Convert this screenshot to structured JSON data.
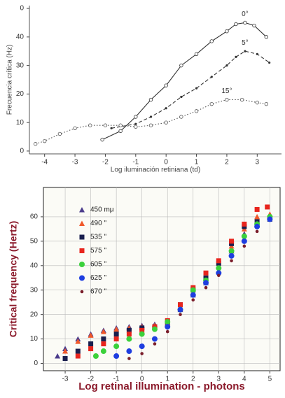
{
  "chart_data": [
    {
      "type": "line",
      "xlabel": "Log iluminación retiniana (td)",
      "ylabel": "Frecuencia crítica (Hz)",
      "xlim": [
        -4.5,
        3.8
      ],
      "ylim": [
        -1,
        51
      ],
      "xticks": [
        -4,
        -3,
        -2,
        -1,
        0,
        1,
        2,
        3
      ],
      "yticks": [
        0,
        10,
        20,
        30,
        40,
        {
          "value": 50,
          "label": "0"
        }
      ],
      "grid": false,
      "series": [
        {
          "name": "0°",
          "color": "#333333",
          "line_style": "solid",
          "marker": "circle-open",
          "x": [
            -2.1,
            -1.5,
            -1,
            -0.5,
            0,
            0.5,
            1,
            1.5,
            2,
            2.3,
            2.6,
            2.9,
            3.3
          ],
          "values": [
            4,
            7,
            12,
            18,
            23,
            30,
            34,
            38.5,
            42,
            44.5,
            45,
            44,
            40
          ]
        },
        {
          "name": "5°",
          "color": "#333333",
          "line_style": "dashed",
          "marker": "dot",
          "x": [
            -1.8,
            -1,
            -0.5,
            0,
            0.5,
            1,
            1.5,
            2,
            2.3,
            2.6,
            3,
            3.4
          ],
          "values": [
            8,
            9.5,
            12,
            15,
            19,
            22,
            26,
            30,
            33,
            35,
            34,
            31
          ]
        },
        {
          "name": "15°",
          "color": "#555555",
          "line_style": "dotted",
          "marker": "circle-open",
          "x": [
            -4.3,
            -4,
            -3.5,
            -3,
            -2.5,
            -2,
            -1.5,
            -1,
            -0.5,
            0,
            0.5,
            1,
            1.5,
            2,
            2.5,
            3,
            3.3
          ],
          "values": [
            2.5,
            3.5,
            6,
            8,
            9,
            9,
            9,
            8.5,
            9,
            10,
            12,
            14,
            16.5,
            18,
            18,
            17,
            16.5
          ]
        }
      ]
    },
    {
      "type": "scatter",
      "xlabel": "Log retinal illumination - photons",
      "ylabel": "Critical frequency (Hertz)",
      "xlim": [
        -3.85,
        5.4
      ],
      "ylim": [
        -3,
        72
      ],
      "xticks": [
        -3,
        -2,
        -1,
        0,
        1,
        2,
        3,
        4,
        5
      ],
      "yticks": [
        0,
        10,
        20,
        30,
        40,
        50,
        60
      ],
      "grid": true,
      "legend": "upper left",
      "series": [
        {
          "name": "450 mμ",
          "color": "#4b3c8c",
          "marker": "triangle",
          "x": [
            -3.3,
            -3,
            -2.5,
            -2,
            -1.5,
            -1,
            -0.5,
            0,
            0.5,
            1,
            1.5,
            2,
            2.5,
            3,
            3.5,
            4,
            4.5,
            5
          ],
          "values": [
            3,
            6,
            10,
            12,
            13.5,
            14.5,
            15,
            15.5,
            16,
            17,
            22,
            28,
            33,
            38,
            46,
            53,
            58,
            61
          ]
        },
        {
          "name": "490 \"",
          "color": "#f0582a",
          "marker": "triangle",
          "x": [
            -3,
            -2.5,
            -2,
            -1.5,
            -1,
            -0.5,
            0,
            0.5,
            1,
            1.5,
            2,
            2.5,
            3,
            3.5,
            4,
            4.5,
            5
          ],
          "values": [
            5,
            9,
            11.5,
            13,
            14,
            14.5,
            15,
            15.5,
            16.5,
            23,
            29,
            34,
            40,
            48,
            55,
            60,
            61
          ]
        },
        {
          "name": "535 \"",
          "color": "#1a1f4e",
          "marker": "square",
          "x": [
            -3,
            -2.5,
            -2,
            -1.5,
            -1,
            -0.5,
            0,
            0.5,
            1,
            1.5,
            2,
            2.5,
            3,
            3.5,
            4,
            4.5,
            5
          ],
          "values": [
            2,
            5,
            8,
            10,
            12,
            13.5,
            14.5,
            15,
            17,
            24,
            30,
            35,
            41,
            49,
            56,
            58,
            59
          ]
        },
        {
          "name": "575 \"",
          "color": "#e8251d",
          "marker": "square",
          "x": [
            -2.5,
            -2,
            -1.5,
            -1,
            -0.5,
            0,
            0.5,
            1,
            1.5,
            2,
            2.5,
            3,
            3.5,
            4,
            4.5,
            4.9
          ],
          "values": [
            3,
            6,
            8,
            10,
            12,
            13.5,
            15,
            17.5,
            24,
            31,
            37,
            42,
            50,
            57,
            63,
            64
          ]
        },
        {
          "name": "605 \"",
          "color": "#3bd13b",
          "marker": "circle",
          "x": [
            -1.8,
            -1.5,
            -1,
            -0.5,
            0,
            0.5,
            1,
            1.5,
            2,
            2.5,
            3,
            3.5,
            4,
            4.5,
            5
          ],
          "values": [
            3,
            5,
            7,
            10,
            12,
            14,
            17,
            22,
            30,
            34,
            39,
            46,
            52,
            57,
            60
          ]
        },
        {
          "name": "625 \"",
          "color": "#1e3ee0",
          "marker": "circle",
          "x": [
            -1,
            -0.5,
            0,
            0.5,
            1,
            1.5,
            2,
            2.5,
            3,
            3.5,
            4,
            4.5,
            5
          ],
          "values": [
            3,
            5,
            7,
            10,
            15,
            22,
            28,
            33,
            37,
            44,
            50,
            56,
            59
          ]
        },
        {
          "name": "670 \"",
          "color": "#7a1d2a",
          "marker": "small-dot",
          "x": [
            -0.5,
            0,
            0.5,
            1,
            1.5,
            2,
            2.5,
            3,
            3.5,
            4,
            4.5
          ],
          "values": [
            2,
            4,
            8,
            13,
            20,
            26,
            31,
            36,
            42,
            48,
            54
          ]
        }
      ]
    }
  ]
}
